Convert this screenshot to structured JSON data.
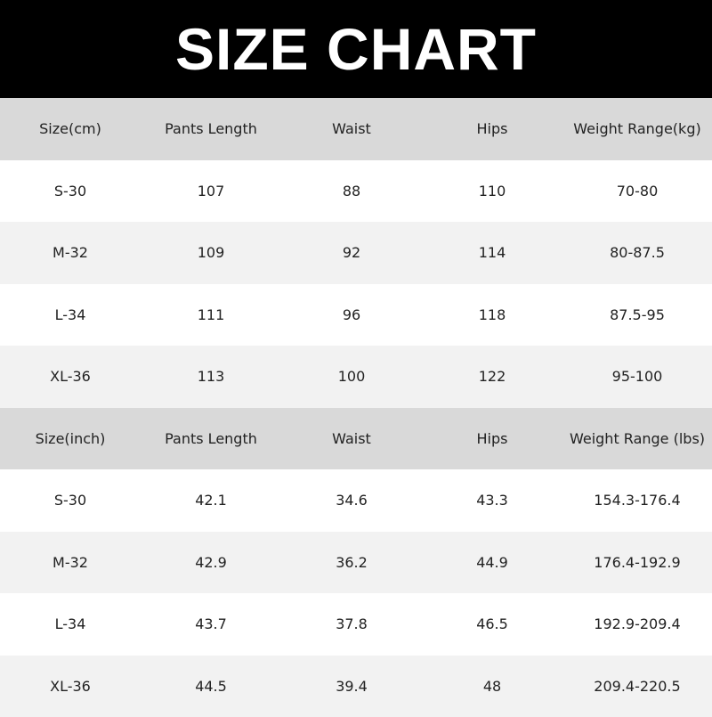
{
  "title": "SIZE CHART",
  "colors": {
    "banner": "#000000",
    "header_row": "#d9d9d9",
    "alt_row": "#f2f2f2"
  },
  "tables": [
    {
      "headers": [
        "Size(cm)",
        "Pants Length",
        "Waist",
        "Hips",
        "Weight Range(kg)"
      ],
      "rows": [
        [
          "S-30",
          "107",
          "88",
          "110",
          "70-80"
        ],
        [
          "M-32",
          "109",
          "92",
          "114",
          "80-87.5"
        ],
        [
          "L-34",
          "111",
          "96",
          "118",
          "87.5-95"
        ],
        [
          "XL-36",
          "113",
          "100",
          "122",
          "95-100"
        ]
      ]
    },
    {
      "headers": [
        "Size(inch)",
        "Pants Length",
        "Waist",
        "Hips",
        "Weight Range (lbs)"
      ],
      "rows": [
        [
          "S-30",
          "42.1",
          "34.6",
          "43.3",
          "154.3-176.4"
        ],
        [
          "M-32",
          "42.9",
          "36.2",
          "44.9",
          "176.4-192.9"
        ],
        [
          "L-34",
          "43.7",
          "37.8",
          "46.5",
          "192.9-209.4"
        ],
        [
          "XL-36",
          "44.5",
          "39.4",
          "48",
          "209.4-220.5"
        ]
      ]
    }
  ]
}
